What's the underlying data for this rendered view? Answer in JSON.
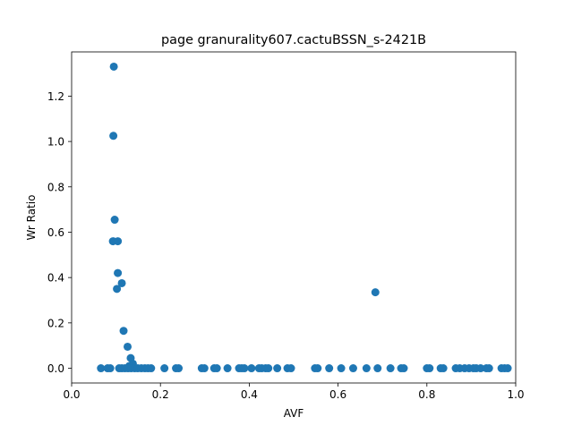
{
  "chart_data": {
    "type": "scatter",
    "title": "page granurality607.cactuBSSN_s-2421B",
    "xlabel": "AVF",
    "ylabel": "Wr Ratio",
    "xlim": [
      0.0,
      1.0
    ],
    "ylim": [
      -0.065,
      1.395
    ],
    "xticks": [
      0.0,
      0.2,
      0.4,
      0.6,
      0.8,
      1.0
    ],
    "xtick_labels": [
      "0.0",
      "0.2",
      "0.4",
      "0.6",
      "0.8",
      "1.0"
    ],
    "yticks": [
      0.0,
      0.2,
      0.4,
      0.6,
      0.8,
      1.0,
      1.2
    ],
    "ytick_labels": [
      "0.0",
      "0.2",
      "0.4",
      "0.6",
      "0.8",
      "1.0",
      "1.2"
    ],
    "grid": false,
    "marker_color": "#1f77b4",
    "points": [
      {
        "x": 0.095,
        "y": 1.33
      },
      {
        "x": 0.094,
        "y": 1.025
      },
      {
        "x": 0.097,
        "y": 0.655
      },
      {
        "x": 0.093,
        "y": 0.56
      },
      {
        "x": 0.104,
        "y": 0.56
      },
      {
        "x": 0.104,
        "y": 0.42
      },
      {
        "x": 0.113,
        "y": 0.375
      },
      {
        "x": 0.102,
        "y": 0.35
      },
      {
        "x": 0.684,
        "y": 0.335
      },
      {
        "x": 0.117,
        "y": 0.165
      },
      {
        "x": 0.126,
        "y": 0.095
      },
      {
        "x": 0.133,
        "y": 0.045
      },
      {
        "x": 0.138,
        "y": 0.02
      },
      {
        "x": 0.13,
        "y": 0.01
      },
      {
        "x": 0.066,
        "y": 0
      },
      {
        "x": 0.081,
        "y": 0
      },
      {
        "x": 0.087,
        "y": 0
      },
      {
        "x": 0.107,
        "y": 0
      },
      {
        "x": 0.113,
        "y": 0
      },
      {
        "x": 0.12,
        "y": 0
      },
      {
        "x": 0.127,
        "y": 0
      },
      {
        "x": 0.134,
        "y": 0
      },
      {
        "x": 0.142,
        "y": 0
      },
      {
        "x": 0.149,
        "y": 0
      },
      {
        "x": 0.157,
        "y": 0
      },
      {
        "x": 0.165,
        "y": 0
      },
      {
        "x": 0.172,
        "y": 0
      },
      {
        "x": 0.179,
        "y": 0
      },
      {
        "x": 0.209,
        "y": 0
      },
      {
        "x": 0.235,
        "y": 0
      },
      {
        "x": 0.241,
        "y": 0
      },
      {
        "x": 0.293,
        "y": 0
      },
      {
        "x": 0.299,
        "y": 0
      },
      {
        "x": 0.321,
        "y": 0
      },
      {
        "x": 0.327,
        "y": 0
      },
      {
        "x": 0.351,
        "y": 0
      },
      {
        "x": 0.377,
        "y": 0
      },
      {
        "x": 0.383,
        "y": 0
      },
      {
        "x": 0.389,
        "y": 0
      },
      {
        "x": 0.405,
        "y": 0
      },
      {
        "x": 0.422,
        "y": 0
      },
      {
        "x": 0.428,
        "y": 0
      },
      {
        "x": 0.437,
        "y": 0
      },
      {
        "x": 0.443,
        "y": 0
      },
      {
        "x": 0.463,
        "y": 0
      },
      {
        "x": 0.486,
        "y": 0
      },
      {
        "x": 0.494,
        "y": 0
      },
      {
        "x": 0.548,
        "y": 0
      },
      {
        "x": 0.554,
        "y": 0
      },
      {
        "x": 0.58,
        "y": 0
      },
      {
        "x": 0.607,
        "y": 0
      },
      {
        "x": 0.634,
        "y": 0
      },
      {
        "x": 0.664,
        "y": 0
      },
      {
        "x": 0.689,
        "y": 0
      },
      {
        "x": 0.718,
        "y": 0
      },
      {
        "x": 0.742,
        "y": 0
      },
      {
        "x": 0.748,
        "y": 0
      },
      {
        "x": 0.8,
        "y": 0
      },
      {
        "x": 0.806,
        "y": 0
      },
      {
        "x": 0.831,
        "y": 0
      },
      {
        "x": 0.837,
        "y": 0
      },
      {
        "x": 0.865,
        "y": 0
      },
      {
        "x": 0.874,
        "y": 0
      },
      {
        "x": 0.885,
        "y": 0
      },
      {
        "x": 0.895,
        "y": 0
      },
      {
        "x": 0.905,
        "y": 0
      },
      {
        "x": 0.911,
        "y": 0
      },
      {
        "x": 0.921,
        "y": 0
      },
      {
        "x": 0.934,
        "y": 0
      },
      {
        "x": 0.94,
        "y": 0
      },
      {
        "x": 0.968,
        "y": 0
      },
      {
        "x": 0.975,
        "y": 0
      },
      {
        "x": 0.982,
        "y": 0
      }
    ]
  }
}
